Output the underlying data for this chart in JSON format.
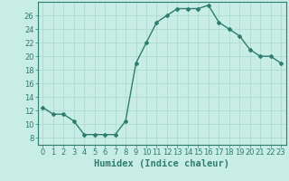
{
  "x": [
    0,
    1,
    2,
    3,
    4,
    5,
    6,
    7,
    8,
    9,
    10,
    11,
    12,
    13,
    14,
    15,
    16,
    17,
    18,
    19,
    20,
    21,
    22,
    23
  ],
  "y": [
    12.5,
    11.5,
    11.5,
    10.5,
    8.5,
    8.5,
    8.5,
    8.5,
    10.5,
    19.0,
    22.0,
    25.0,
    26.0,
    27.0,
    27.0,
    27.0,
    27.5,
    25.0,
    24.0,
    23.0,
    21.0,
    20.0,
    20.0,
    19.0
  ],
  "title": "",
  "xlabel": "Humidex (Indice chaleur)",
  "ylabel": "",
  "xlim": [
    -0.5,
    23.5
  ],
  "ylim": [
    7,
    28
  ],
  "yticks": [
    8,
    10,
    12,
    14,
    16,
    18,
    20,
    22,
    24,
    26
  ],
  "xticks": [
    0,
    1,
    2,
    3,
    4,
    5,
    6,
    7,
    8,
    9,
    10,
    11,
    12,
    13,
    14,
    15,
    16,
    17,
    18,
    19,
    20,
    21,
    22,
    23
  ],
  "line_color": "#2E7D6E",
  "marker": "D",
  "marker_size": 2.0,
  "bg_color": "#C8EDE5",
  "grid_color": "#A8D8CC",
  "line_width": 1.0,
  "xlabel_fontsize": 7.5,
  "tick_fontsize": 6.0
}
